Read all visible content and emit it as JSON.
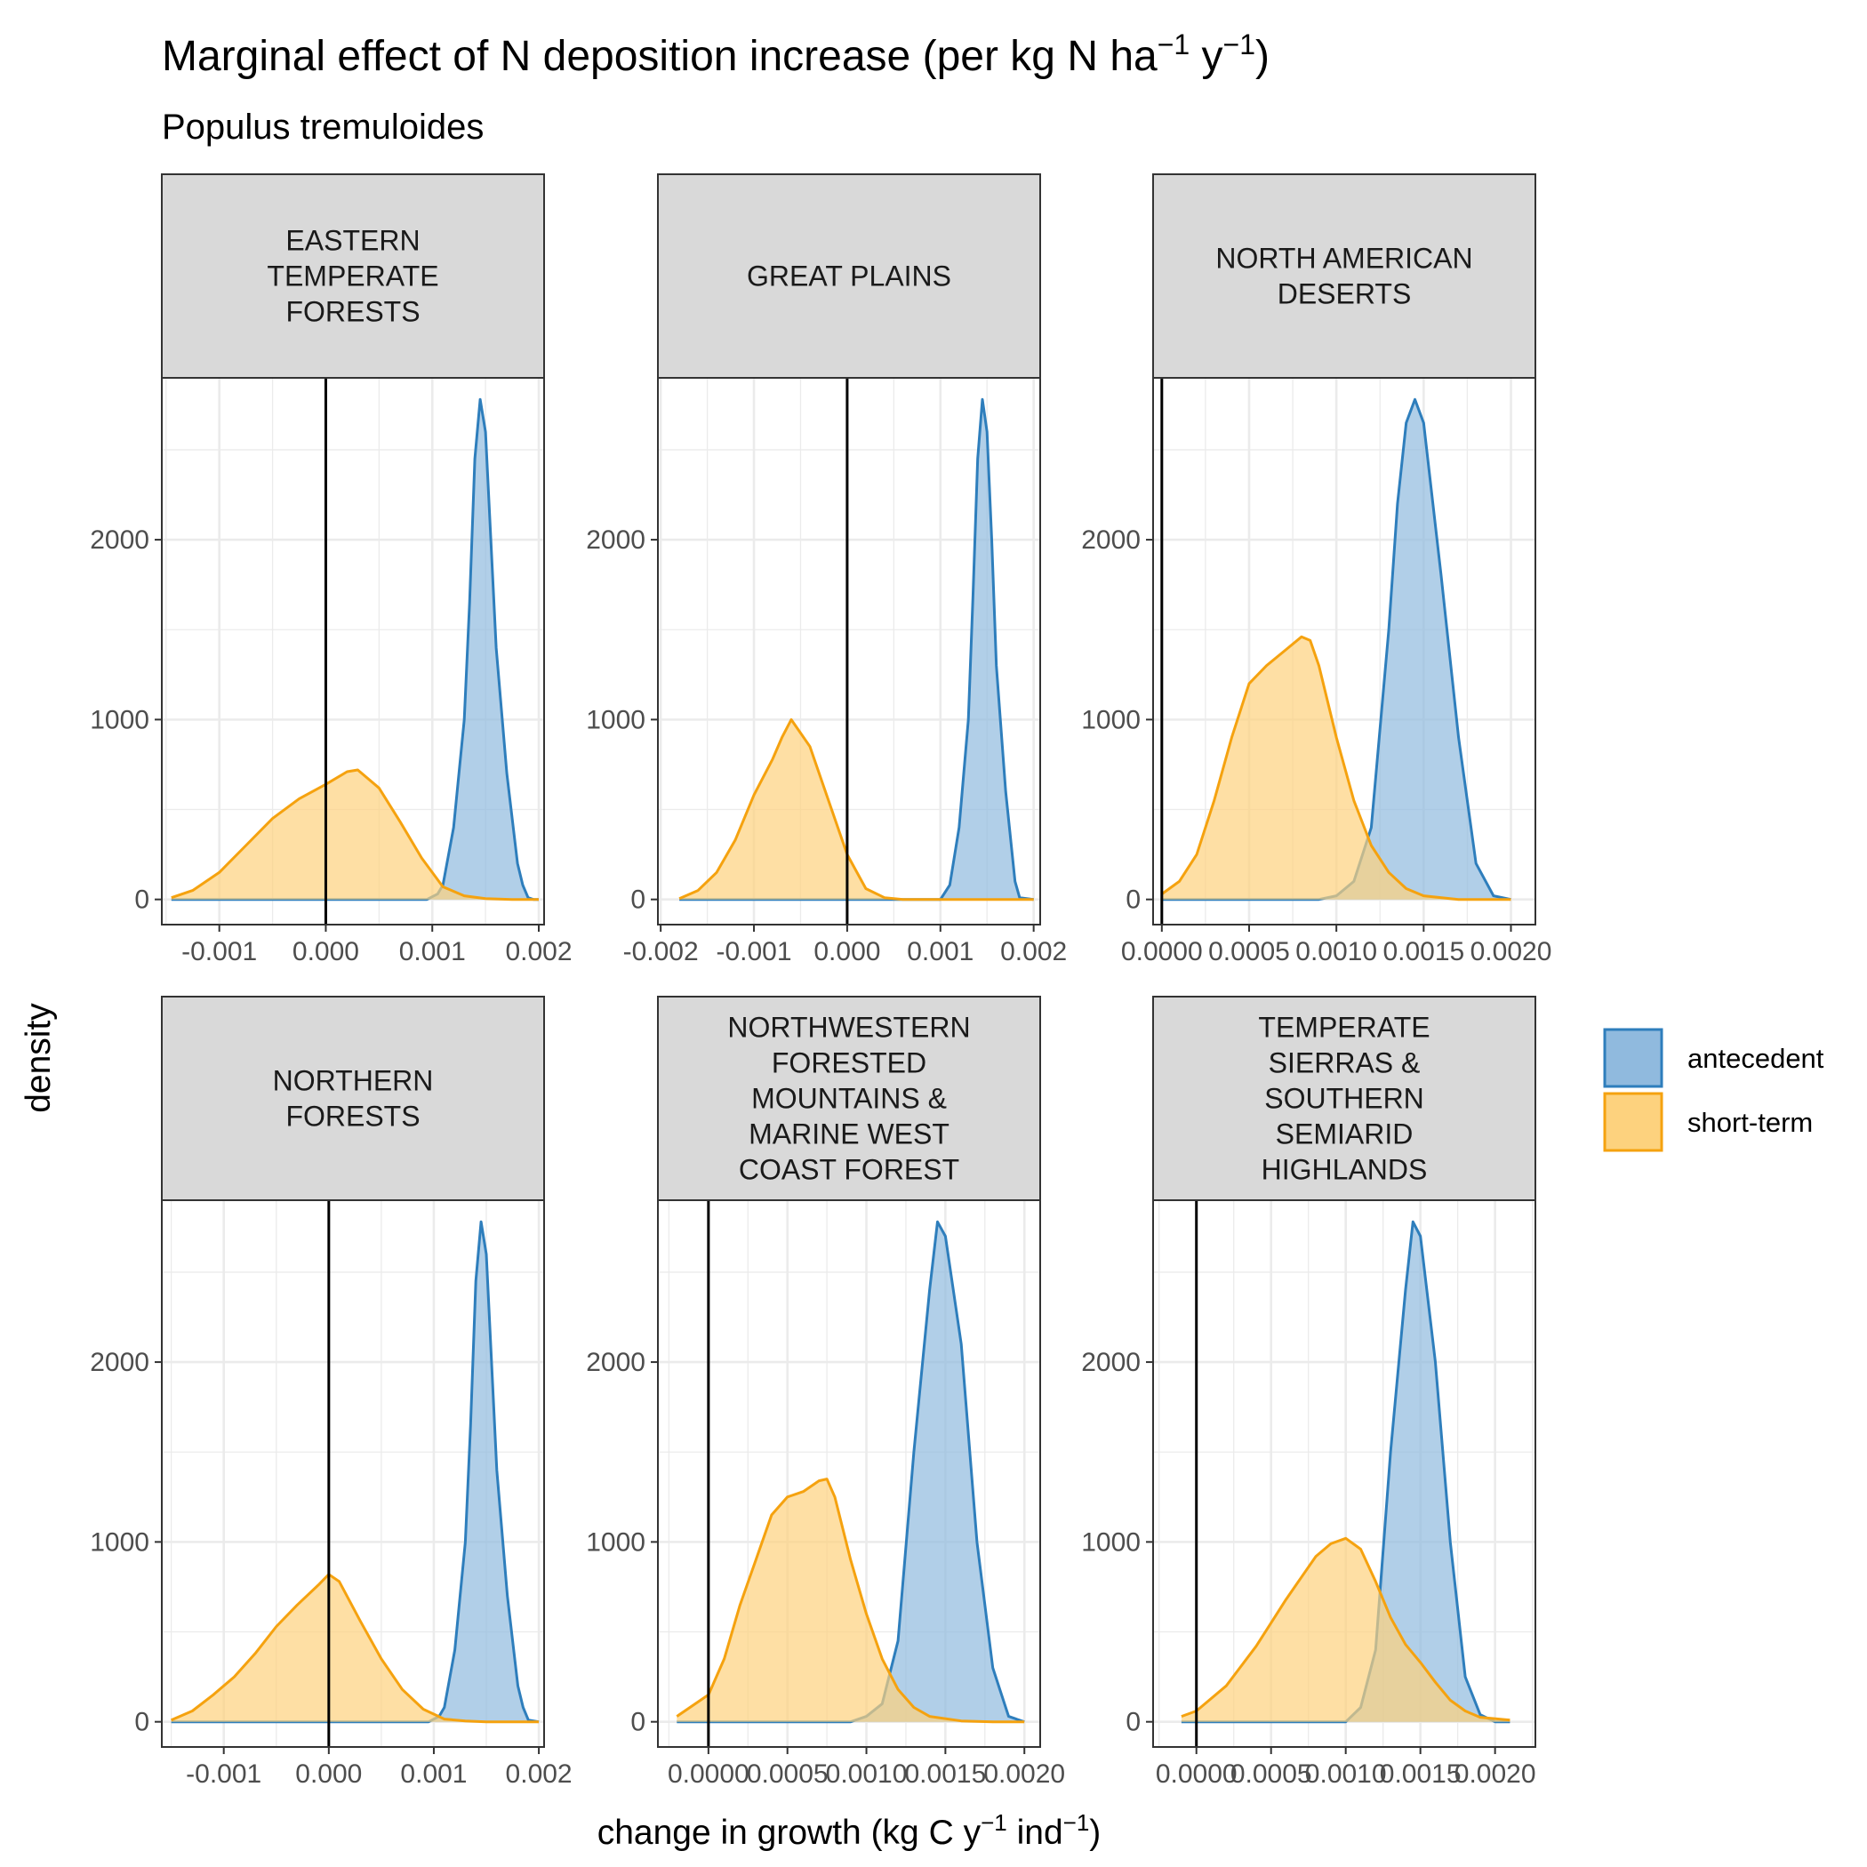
{
  "figure": {
    "title_main": "Marginal effect of N deposition increase (per kg N ha",
    "title_sup1": "−1",
    "title_mid": " y",
    "title_sup2": "−1",
    "title_end": ")",
    "subtitle": "Populus tremuloides"
  },
  "colors": {
    "antecedent_fill": "#90bade",
    "antecedent_line": "#2e7ebc",
    "short_term_fill": "#fdd27e",
    "short_term_line": "#f5a20f",
    "strip_bg": "#d9d9d9",
    "grid": "#ebebeb"
  },
  "chart_data": [
    {
      "type": "area",
      "facet": [
        "EASTERN",
        "TEMPERATE",
        "FORESTS"
      ],
      "xlim": [
        -0.00154,
        0.00205
      ],
      "ylim": [
        -140,
        2900
      ],
      "xticks": [
        -0.001,
        0.0,
        0.001,
        0.002
      ],
      "xtick_labels": [
        "-0.001",
        "0.000",
        "0.001",
        "0.002"
      ],
      "yticks": [
        0,
        1000,
        2000
      ],
      "ytick_labels": [
        "0",
        "1000",
        "2000"
      ],
      "vline": 0.0,
      "series": [
        {
          "name": "antecedent",
          "x": [
            -0.00145,
            0.00095,
            0.00105,
            0.0011,
            0.0012,
            0.0013,
            0.00135,
            0.0014,
            0.00145,
            0.0015,
            0.00155,
            0.0016,
            0.0017,
            0.0018,
            0.00185,
            0.0019,
            0.00195,
            0.002
          ],
          "y": [
            0,
            0,
            30,
            80,
            400,
            1000,
            1650,
            2450,
            2780,
            2600,
            2000,
            1400,
            700,
            200,
            80,
            10,
            0,
            0
          ]
        },
        {
          "name": "short-term",
          "x": [
            -0.00145,
            -0.00125,
            -0.001,
            -0.00075,
            -0.0005,
            -0.00025,
            0.0,
            0.0002,
            0.0003,
            0.0005,
            0.0007,
            0.0009,
            0.0011,
            0.0013,
            0.0015,
            0.00175,
            0.002
          ],
          "y": [
            10,
            50,
            150,
            300,
            450,
            560,
            640,
            710,
            720,
            620,
            430,
            230,
            70,
            20,
            5,
            0,
            0
          ]
        }
      ]
    },
    {
      "type": "area",
      "facet": [
        "GREAT PLAINS"
      ],
      "xlim": [
        -0.00203,
        0.00207
      ],
      "ylim": [
        -140,
        2900
      ],
      "xticks": [
        -0.002,
        -0.001,
        0.0,
        0.001,
        0.002
      ],
      "xtick_labels": [
        "-0.002",
        "-0.001",
        "0.000",
        "0.001",
        "0.002"
      ],
      "yticks": [
        0,
        1000,
        2000
      ],
      "ytick_labels": [
        "0",
        "1000",
        "2000"
      ],
      "vline": 0.0,
      "series": [
        {
          "name": "antecedent",
          "x": [
            -0.0018,
            0.001,
            0.0011,
            0.0012,
            0.0013,
            0.00135,
            0.0014,
            0.00145,
            0.0015,
            0.00155,
            0.0016,
            0.0017,
            0.0018,
            0.00185,
            0.002
          ],
          "y": [
            0,
            0,
            80,
            400,
            1000,
            1700,
            2450,
            2780,
            2600,
            2000,
            1300,
            600,
            100,
            10,
            0
          ]
        },
        {
          "name": "short-term",
          "x": [
            -0.0018,
            -0.0016,
            -0.0014,
            -0.0012,
            -0.001,
            -0.0008,
            -0.0007,
            -0.0006,
            -0.0004,
            -0.0002,
            0.0,
            0.0002,
            0.0004,
            0.0006,
            0.001,
            0.002
          ],
          "y": [
            5,
            50,
            150,
            330,
            580,
            780,
            900,
            1000,
            850,
            550,
            250,
            60,
            10,
            0,
            0,
            0
          ]
        }
      ]
    },
    {
      "type": "area",
      "facet": [
        "NORTH AMERICAN",
        "DESERTS"
      ],
      "xlim": [
        -5e-05,
        0.00214
      ],
      "ylim": [
        -140,
        2900
      ],
      "xticks": [
        0.0,
        0.0005,
        0.001,
        0.0015,
        0.002
      ],
      "xtick_labels": [
        "0.0000",
        "0.0005",
        "0.0010",
        "0.0015",
        "0.0020"
      ],
      "yticks": [
        0,
        1000,
        2000
      ],
      "ytick_labels": [
        "0",
        "1000",
        "2000"
      ],
      "vline": 0.0,
      "series": [
        {
          "name": "antecedent",
          "x": [
            0.0,
            0.0009,
            0.001,
            0.0011,
            0.0012,
            0.0013,
            0.00135,
            0.0014,
            0.00145,
            0.0015,
            0.0016,
            0.0017,
            0.0018,
            0.0019,
            0.002
          ],
          "y": [
            0,
            0,
            20,
            100,
            400,
            1500,
            2200,
            2650,
            2780,
            2650,
            1800,
            900,
            200,
            20,
            0
          ]
        },
        {
          "name": "short-term",
          "x": [
            0.0,
            0.0001,
            0.0002,
            0.0003,
            0.0004,
            0.0005,
            0.0006,
            0.0007,
            0.0008,
            0.00085,
            0.0009,
            0.001,
            0.0011,
            0.0012,
            0.0013,
            0.0014,
            0.0015,
            0.0017,
            0.002
          ],
          "y": [
            30,
            100,
            250,
            550,
            900,
            1200,
            1300,
            1380,
            1460,
            1440,
            1300,
            900,
            550,
            300,
            150,
            60,
            20,
            0,
            0
          ]
        }
      ]
    },
    {
      "type": "area",
      "facet": [
        "NORTHERN",
        "FORESTS"
      ],
      "xlim": [
        -0.00159,
        0.00205
      ],
      "ylim": [
        -140,
        2900
      ],
      "xticks": [
        -0.001,
        0.0,
        0.001,
        0.002
      ],
      "xtick_labels": [
        "-0.001",
        "0.000",
        "0.001",
        "0.002"
      ],
      "yticks": [
        0,
        1000,
        2000
      ],
      "ytick_labels": [
        "0",
        "1000",
        "2000"
      ],
      "vline": 0.0,
      "series": [
        {
          "name": "antecedent",
          "x": [
            -0.0015,
            0.00095,
            0.00105,
            0.0011,
            0.0012,
            0.0013,
            0.00135,
            0.0014,
            0.00145,
            0.0015,
            0.00155,
            0.0016,
            0.0017,
            0.0018,
            0.00185,
            0.0019,
            0.002
          ],
          "y": [
            0,
            0,
            30,
            80,
            400,
            1000,
            1650,
            2450,
            2780,
            2600,
            2000,
            1400,
            700,
            200,
            80,
            10,
            0
          ]
        },
        {
          "name": "short-term",
          "x": [
            -0.0015,
            -0.0013,
            -0.0011,
            -0.0009,
            -0.0007,
            -0.0005,
            -0.0003,
            -0.0001,
            0.0,
            0.0001,
            0.0003,
            0.0005,
            0.0007,
            0.0009,
            0.0011,
            0.0013,
            0.0015,
            0.002
          ],
          "y": [
            10,
            60,
            150,
            250,
            380,
            530,
            650,
            760,
            820,
            780,
            560,
            350,
            180,
            70,
            15,
            5,
            0,
            0
          ]
        }
      ]
    },
    {
      "type": "area",
      "facet": [
        "NORTHWESTERN",
        "FORESTED",
        "MOUNTAINS &",
        "MARINE WEST",
        "COAST FOREST"
      ],
      "xlim": [
        -0.00032,
        0.0021
      ],
      "ylim": [
        -140,
        2900
      ],
      "xticks": [
        0.0,
        0.0005,
        0.001,
        0.0015,
        0.002
      ],
      "xtick_labels": [
        "0.0000",
        "0.0005",
        "0.0010",
        "0.0015",
        "0.0020"
      ],
      "yticks": [
        0,
        1000,
        2000
      ],
      "ytick_labels": [
        "0",
        "1000",
        "2000"
      ],
      "vline": 0.0,
      "series": [
        {
          "name": "antecedent",
          "x": [
            -0.0002,
            0.0009,
            0.001,
            0.0011,
            0.0012,
            0.0013,
            0.0014,
            0.00145,
            0.0015,
            0.0016,
            0.0017,
            0.0018,
            0.0019,
            0.002
          ],
          "y": [
            0,
            0,
            30,
            100,
            450,
            1500,
            2400,
            2780,
            2700,
            2100,
            1000,
            300,
            30,
            0
          ]
        },
        {
          "name": "short-term",
          "x": [
            -0.0002,
            0.0,
            0.0001,
            0.0002,
            0.0003,
            0.0004,
            0.0005,
            0.0006,
            0.0007,
            0.00075,
            0.0008,
            0.0009,
            0.001,
            0.0011,
            0.0012,
            0.0013,
            0.0014,
            0.0016,
            0.0018,
            0.002
          ],
          "y": [
            30,
            150,
            350,
            650,
            900,
            1150,
            1250,
            1280,
            1340,
            1350,
            1250,
            900,
            600,
            350,
            180,
            80,
            30,
            5,
            0,
            0
          ]
        }
      ]
    },
    {
      "type": "area",
      "facet": [
        "TEMPERATE",
        "SIERRAS &",
        "SOUTHERN",
        "SEMIARID",
        "HIGHLANDS"
      ],
      "xlim": [
        -0.00029,
        0.00227
      ],
      "ylim": [
        -140,
        2900
      ],
      "xticks": [
        0.0,
        0.0005,
        0.001,
        0.0015,
        0.002
      ],
      "xtick_labels": [
        "0.0000",
        "0.0005",
        "0.0010",
        "0.0015",
        "0.0020"
      ],
      "yticks": [
        0,
        1000,
        2000
      ],
      "ytick_labels": [
        "0",
        "1000",
        "2000"
      ],
      "vline": 0.0,
      "series": [
        {
          "name": "antecedent",
          "x": [
            -0.0001,
            0.001,
            0.0011,
            0.0012,
            0.0013,
            0.0014,
            0.00145,
            0.0015,
            0.0016,
            0.0017,
            0.0018,
            0.0019,
            0.002,
            0.0021
          ],
          "y": [
            0,
            0,
            80,
            400,
            1500,
            2400,
            2780,
            2700,
            2000,
            1000,
            250,
            40,
            0,
            0
          ]
        },
        {
          "name": "short-term",
          "x": [
            -0.0001,
            0.0,
            0.0002,
            0.0004,
            0.0005,
            0.0006,
            0.0007,
            0.0008,
            0.0009,
            0.001,
            0.0011,
            0.0012,
            0.0013,
            0.0014,
            0.0015,
            0.0016,
            0.0017,
            0.0018,
            0.0019,
            0.0021
          ],
          "y": [
            30,
            60,
            200,
            420,
            550,
            680,
            800,
            920,
            990,
            1020,
            960,
            780,
            580,
            430,
            330,
            220,
            120,
            60,
            25,
            10
          ]
        }
      ]
    }
  ],
  "axes": {
    "ylabel": "density",
    "xlabel_main": "change in growth (kg C y",
    "xlabel_sup1": "−1",
    "xlabel_mid": " ind",
    "xlabel_sup2": "−1",
    "xlabel_end": ")"
  },
  "legend": {
    "placement": "right",
    "items": [
      {
        "label": "antecedent"
      },
      {
        "label": "short-term"
      }
    ]
  }
}
